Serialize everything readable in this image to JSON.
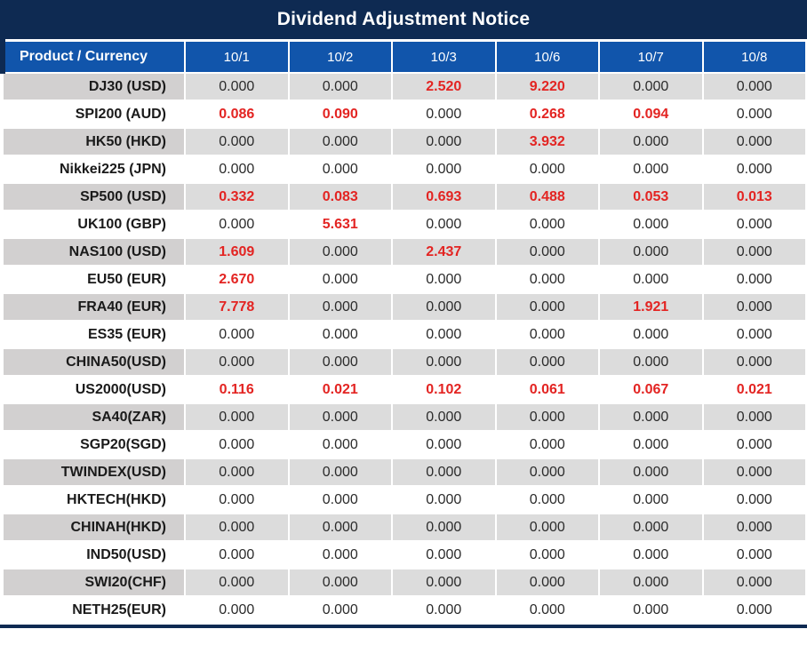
{
  "title": "Dividend Adjustment Notice",
  "table": {
    "zero_value": "0.000",
    "columns": [
      "Product / Currency",
      "10/1",
      "10/2",
      "10/3",
      "10/6",
      "10/7",
      "10/8"
    ],
    "rows": [
      {
        "product": "DJ30 (USD)",
        "values": [
          "0.000",
          "0.000",
          "2.520",
          "9.220",
          "0.000",
          "0.000"
        ]
      },
      {
        "product": "SPI200 (AUD)",
        "values": [
          "0.086",
          "0.090",
          "0.000",
          "0.268",
          "0.094",
          "0.000"
        ]
      },
      {
        "product": "HK50 (HKD)",
        "values": [
          "0.000",
          "0.000",
          "0.000",
          "3.932",
          "0.000",
          "0.000"
        ]
      },
      {
        "product": "Nikkei225 (JPN)",
        "values": [
          "0.000",
          "0.000",
          "0.000",
          "0.000",
          "0.000",
          "0.000"
        ]
      },
      {
        "product": "SP500 (USD)",
        "values": [
          "0.332",
          "0.083",
          "0.693",
          "0.488",
          "0.053",
          "0.013"
        ]
      },
      {
        "product": "UK100 (GBP)",
        "values": [
          "0.000",
          "5.631",
          "0.000",
          "0.000",
          "0.000",
          "0.000"
        ]
      },
      {
        "product": "NAS100 (USD)",
        "values": [
          "1.609",
          "0.000",
          "2.437",
          "0.000",
          "0.000",
          "0.000"
        ]
      },
      {
        "product": "EU50 (EUR)",
        "values": [
          "2.670",
          "0.000",
          "0.000",
          "0.000",
          "0.000",
          "0.000"
        ]
      },
      {
        "product": "FRA40 (EUR)",
        "values": [
          "7.778",
          "0.000",
          "0.000",
          "0.000",
          "1.921",
          "0.000"
        ]
      },
      {
        "product": "ES35 (EUR)",
        "values": [
          "0.000",
          "0.000",
          "0.000",
          "0.000",
          "0.000",
          "0.000"
        ]
      },
      {
        "product": "CHINA50(USD)",
        "values": [
          "0.000",
          "0.000",
          "0.000",
          "0.000",
          "0.000",
          "0.000"
        ]
      },
      {
        "product": "US2000(USD)",
        "values": [
          "0.116",
          "0.021",
          "0.102",
          "0.061",
          "0.067",
          "0.021"
        ]
      },
      {
        "product": "SA40(ZAR)",
        "values": [
          "0.000",
          "0.000",
          "0.000",
          "0.000",
          "0.000",
          "0.000"
        ]
      },
      {
        "product": "SGP20(SGD)",
        "values": [
          "0.000",
          "0.000",
          "0.000",
          "0.000",
          "0.000",
          "0.000"
        ]
      },
      {
        "product": "TWINDEX(USD)",
        "values": [
          "0.000",
          "0.000",
          "0.000",
          "0.000",
          "0.000",
          "0.000"
        ]
      },
      {
        "product": "HKTECH(HKD)",
        "values": [
          "0.000",
          "0.000",
          "0.000",
          "0.000",
          "0.000",
          "0.000"
        ]
      },
      {
        "product": "CHINAH(HKD)",
        "values": [
          "0.000",
          "0.000",
          "0.000",
          "0.000",
          "0.000",
          "0.000"
        ]
      },
      {
        "product": "IND50(USD)",
        "values": [
          "0.000",
          "0.000",
          "0.000",
          "0.000",
          "0.000",
          "0.000"
        ]
      },
      {
        "product": "SWI20(CHF)",
        "values": [
          "0.000",
          "0.000",
          "0.000",
          "0.000",
          "0.000",
          "0.000"
        ]
      },
      {
        "product": "NETH25(EUR)",
        "values": [
          "0.000",
          "0.000",
          "0.000",
          "0.000",
          "0.000",
          "0.000"
        ]
      }
    ]
  },
  "colors": {
    "title_bg": "#0e2a52",
    "header_bg": "#1155ab",
    "row_gray": "#dcdcdc",
    "product_gray": "#d2d0d0",
    "highlight_red": "#e32422"
  }
}
